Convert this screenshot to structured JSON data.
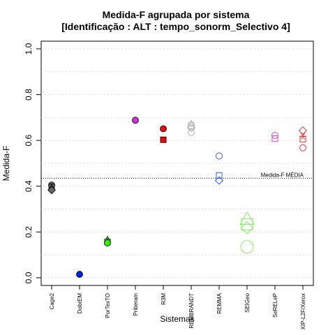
{
  "chart_data": {
    "type": "scatter",
    "title": "Medida-F agrupada por sistema",
    "subtitle": "[Identificação : ALT : tempo_sonorm_Selectivo 4]",
    "xlabel": "Sistemas",
    "ylabel": "Medida-F",
    "ylim": [
      0,
      1
    ],
    "yticks": [
      "0.0",
      "0.2",
      "0.4",
      "0.6",
      "0.8",
      "1.0"
    ],
    "grid": "horizontal-dotted",
    "categories": [
      "Cage2",
      "DobrEM",
      "PorTexTO",
      "Priberam",
      "R3M",
      "REMBRANDT",
      "REMMA",
      "SEIGeo",
      "SeRELeP",
      "XIP-L2F/Xerox"
    ],
    "reference_line": {
      "value": 0.435,
      "label": "Medida-F MÉDIA"
    },
    "points": [
      {
        "category": "Cage2",
        "y": 0.405,
        "shape": "circle",
        "filled": true,
        "color": "#666666",
        "size": 1.0
      },
      {
        "category": "Cage2",
        "y": 0.398,
        "shape": "square",
        "filled": true,
        "color": "#666666",
        "size": 1.0
      },
      {
        "category": "Cage2",
        "y": 0.392,
        "shape": "triangle",
        "filled": true,
        "color": "#666666",
        "size": 1.0
      },
      {
        "category": "Cage2",
        "y": 0.383,
        "shape": "diamond",
        "filled": true,
        "color": "#666666",
        "size": 1.0
      },
      {
        "category": "DobrEM",
        "y": 0.015,
        "shape": "circle",
        "filled": true,
        "color": "#0022dd",
        "size": 1.0
      },
      {
        "category": "PorTexTO",
        "y": 0.165,
        "shape": "triangle",
        "filled": true,
        "color": "#33ee00",
        "size": 1.0
      },
      {
        "category": "PorTexTO",
        "y": 0.157,
        "shape": "square",
        "filled": true,
        "color": "#33ee00",
        "size": 1.0
      },
      {
        "category": "PorTexTO",
        "y": 0.152,
        "shape": "circle",
        "filled": true,
        "color": "#33ee00",
        "size": 1.0
      },
      {
        "category": "Priberam",
        "y": 0.688,
        "shape": "circle",
        "filled": true,
        "color": "#cc33dd",
        "size": 1.0
      },
      {
        "category": "R3M",
        "y": 0.651,
        "shape": "circle",
        "filled": true,
        "color": "#dd1111",
        "size": 1.0
      },
      {
        "category": "R3M",
        "y": 0.603,
        "shape": "square",
        "filled": true,
        "color": "#dd1111",
        "size": 1.0
      },
      {
        "category": "REMBRANDT",
        "y": 0.672,
        "shape": "triangle",
        "filled": false,
        "color": "#aaaaaa",
        "size": 1.0
      },
      {
        "category": "REMBRANDT",
        "y": 0.665,
        "shape": "square",
        "filled": false,
        "color": "#aaaaaa",
        "size": 1.0
      },
      {
        "category": "REMBRANDT",
        "y": 0.655,
        "shape": "diamond",
        "filled": false,
        "color": "#aaaaaa",
        "size": 1.0
      },
      {
        "category": "REMBRANDT",
        "y": 0.635,
        "shape": "circle",
        "filled": false,
        "color": "#aaaaaa",
        "size": 1.0
      },
      {
        "category": "REMMA",
        "y": 0.532,
        "shape": "circle",
        "filled": false,
        "color": "#3355ee",
        "size": 1.0
      },
      {
        "category": "REMMA",
        "y": 0.447,
        "shape": "square",
        "filled": false,
        "color": "#3355ee",
        "size": 1.0
      },
      {
        "category": "REMMA",
        "y": 0.425,
        "shape": "diamond",
        "filled": false,
        "color": "#3355ee",
        "size": 1.0
      },
      {
        "category": "SEIGeo",
        "y": 0.253,
        "shape": "triangle",
        "filled": false,
        "color": "#88ee66",
        "size": 2.2
      },
      {
        "category": "SEIGeo",
        "y": 0.233,
        "shape": "square",
        "filled": false,
        "color": "#88ee66",
        "size": 2.0
      },
      {
        "category": "SEIGeo",
        "y": 0.218,
        "shape": "diamond",
        "filled": false,
        "color": "#88ee66",
        "size": 1.6
      },
      {
        "category": "SEIGeo",
        "y": 0.135,
        "shape": "circle",
        "filled": false,
        "color": "#88ee66",
        "size": 2.0
      },
      {
        "category": "SeRELeP",
        "y": 0.622,
        "shape": "circle",
        "filled": false,
        "color": "#dd44dd",
        "size": 1.0
      },
      {
        "category": "SeRELeP",
        "y": 0.608,
        "shape": "square",
        "filled": false,
        "color": "#dd44dd",
        "size": 1.0
      },
      {
        "category": "XIP-L2F/Xerox",
        "y": 0.643,
        "shape": "diamond",
        "filled": false,
        "color": "#ee3333",
        "size": 1.0
      },
      {
        "category": "XIP-L2F/Xerox",
        "y": 0.618,
        "shape": "star",
        "filled": false,
        "color": "#ee3333",
        "size": 1.0
      },
      {
        "category": "XIP-L2F/Xerox",
        "y": 0.605,
        "shape": "square",
        "filled": false,
        "color": "#ee3333",
        "size": 1.0
      },
      {
        "category": "XIP-L2F/Xerox",
        "y": 0.568,
        "shape": "circle",
        "filled": false,
        "color": "#ee3333",
        "size": 1.0
      }
    ]
  }
}
